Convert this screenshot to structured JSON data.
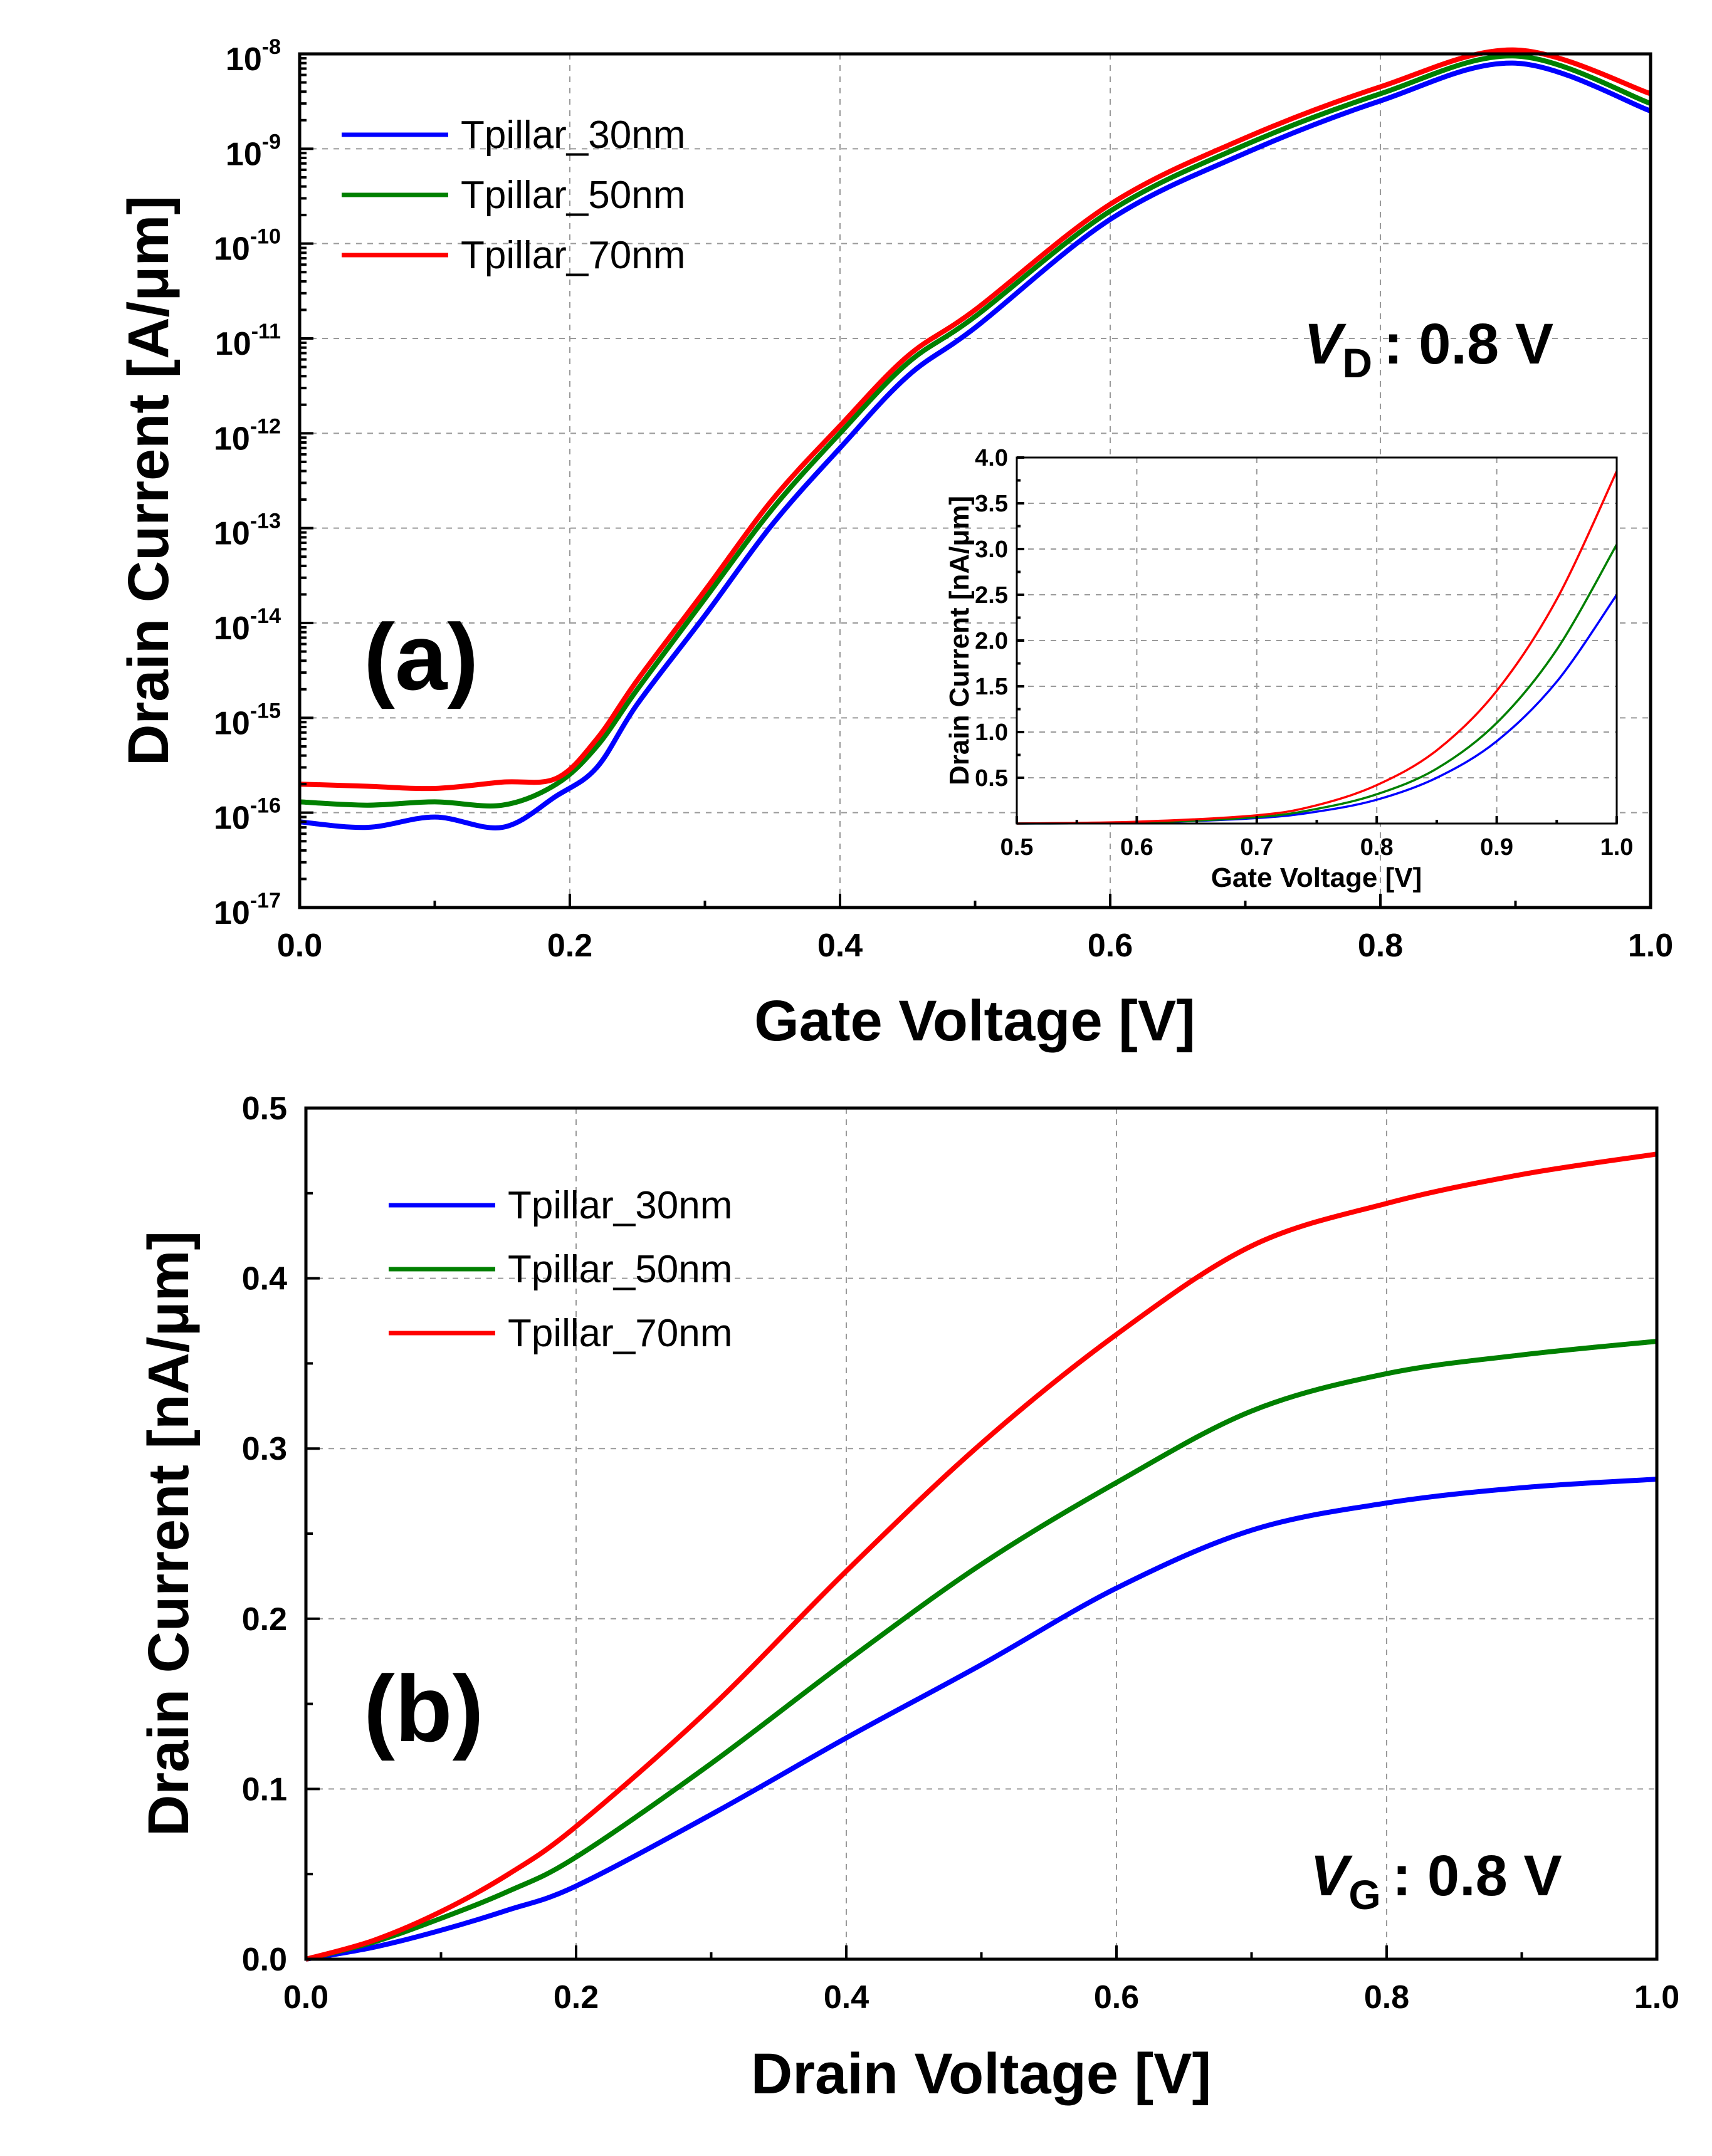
{
  "chart_data": [
    {
      "panel_label": "(a)",
      "type": "line",
      "xlabel": "Gate Voltage [V]",
      "ylabel": "Drain Current [A/μm]",
      "y_scale": "log",
      "xlim": [
        0.0,
        1.0
      ],
      "ylim": [
        1e-17,
        1e-08
      ],
      "x_ticks": [
        "0.0",
        "0.2",
        "0.4",
        "0.6",
        "0.8",
        "1.0"
      ],
      "y_ticks": [
        {
          "base": "10",
          "exp": "-17"
        },
        {
          "base": "10",
          "exp": "-16"
        },
        {
          "base": "10",
          "exp": "-15"
        },
        {
          "base": "10",
          "exp": "-14"
        },
        {
          "base": "10",
          "exp": "-13"
        },
        {
          "base": "10",
          "exp": "-12"
        },
        {
          "base": "10",
          "exp": "-11"
        },
        {
          "base": "10",
          "exp": "-10"
        },
        {
          "base": "10",
          "exp": "-9"
        },
        {
          "base": "10",
          "exp": "-8"
        }
      ],
      "annotation": {
        "symbol": "V",
        "subscript": "D",
        "text": ": 0.8 V"
      },
      "grid": true,
      "legend_position": "top-left",
      "x": [
        0.0,
        0.05,
        0.1,
        0.15,
        0.19,
        0.22,
        0.25,
        0.3,
        0.35,
        0.4,
        0.45,
        0.5,
        0.6,
        0.7,
        0.8,
        0.9,
        1.0
      ],
      "series": [
        {
          "name": "Tpillar_30nm",
          "color": "#0000ff",
          "values": [
            8e-17,
            7e-17,
            9e-17,
            7e-17,
            1.5e-16,
            3e-16,
            1.4e-15,
            1.2e-14,
            1.1e-13,
            7e-13,
            4e-12,
            1.3e-11,
            1.8e-10,
            9e-10,
            3.2e-09,
            8e-09,
            2.5e-09
          ]
        },
        {
          "name": "Tpillar_50nm",
          "color": "#008000",
          "values": [
            1.3e-16,
            1.2e-16,
            1.3e-16,
            1.2e-16,
            2e-16,
            5e-16,
            2e-15,
            1.8e-14,
            1.6e-13,
            1e-12,
            5.5e-12,
            1.7e-11,
            2.2e-10,
            1.1e-09,
            3.8e-09,
            9.5e-09,
            3e-09
          ]
        },
        {
          "name": "Tpillar_70nm",
          "color": "#ff0000",
          "values": [
            2e-16,
            1.9e-16,
            1.8e-16,
            2.1e-16,
            2.3e-16,
            6e-16,
            2.5e-15,
            2.2e-14,
            2e-13,
            1.2e-12,
            6.5e-12,
            2e-11,
            2.6e-10,
            1.3e-09,
            4.5e-09,
            1.1e-08,
            3.8e-09
          ]
        }
      ],
      "inset": {
        "type": "line",
        "xlabel": "Gate Voltage [V]",
        "ylabel": "Drain Current [nA/μm]",
        "xlim": [
          0.5,
          1.0
        ],
        "ylim": [
          0.0,
          4.0
        ],
        "x_ticks": [
          "0.5",
          "0.6",
          "0.7",
          "0.8",
          "0.9",
          "1.0"
        ],
        "y_ticks": [
          "0.5",
          "1.0",
          "1.5",
          "2.0",
          "2.5",
          "3.0",
          "3.5",
          "4.0"
        ],
        "x": [
          0.5,
          0.6,
          0.7,
          0.75,
          0.8,
          0.85,
          0.9,
          0.95,
          1.0
        ],
        "series": [
          {
            "name": "Tpillar_30nm",
            "color": "#0000ff",
            "values": [
              0.0,
              0.01,
              0.06,
              0.13,
              0.26,
              0.5,
              0.9,
              1.55,
              2.5
            ]
          },
          {
            "name": "Tpillar_50nm",
            "color": "#008000",
            "values": [
              0.0,
              0.01,
              0.07,
              0.16,
              0.32,
              0.6,
              1.1,
              1.9,
              3.05
            ]
          },
          {
            "name": "Tpillar_70nm",
            "color": "#ff0000",
            "values": [
              0.0,
              0.02,
              0.09,
              0.2,
              0.42,
              0.8,
              1.45,
              2.45,
              3.85
            ]
          }
        ]
      }
    },
    {
      "panel_label": "(b)",
      "type": "line",
      "xlabel": "Drain Voltage [V]",
      "ylabel": "Drain Current [nA/μm]",
      "xlim": [
        0.0,
        1.0
      ],
      "ylim": [
        0.0,
        0.5
      ],
      "x_ticks": [
        "0.0",
        "0.2",
        "0.4",
        "0.6",
        "0.8",
        "1.0"
      ],
      "y_ticks": [
        "0.0",
        "0.1",
        "0.2",
        "0.3",
        "0.4",
        "0.5"
      ],
      "annotation": {
        "symbol": "V",
        "subscript": "G",
        "text": ": 0.8 V"
      },
      "grid": true,
      "legend_position": "top-left",
      "x": [
        0.0,
        0.05,
        0.1,
        0.15,
        0.2,
        0.3,
        0.4,
        0.5,
        0.6,
        0.7,
        0.8,
        0.9,
        1.0
      ],
      "series": [
        {
          "name": "Tpillar_30nm",
          "color": "#0000ff",
          "values": [
            0.0,
            0.007,
            0.017,
            0.029,
            0.043,
            0.085,
            0.13,
            0.173,
            0.218,
            0.252,
            0.268,
            0.277,
            0.282
          ]
        },
        {
          "name": "Tpillar_50nm",
          "color": "#008000",
          "values": [
            0.0,
            0.01,
            0.024,
            0.04,
            0.06,
            0.115,
            0.175,
            0.232,
            0.28,
            0.322,
            0.344,
            0.355,
            0.363
          ]
        },
        {
          "name": "Tpillar_70nm",
          "color": "#ff0000",
          "values": [
            0.0,
            0.011,
            0.028,
            0.05,
            0.078,
            0.148,
            0.228,
            0.303,
            0.367,
            0.419,
            0.444,
            0.461,
            0.473
          ]
        }
      ]
    }
  ]
}
